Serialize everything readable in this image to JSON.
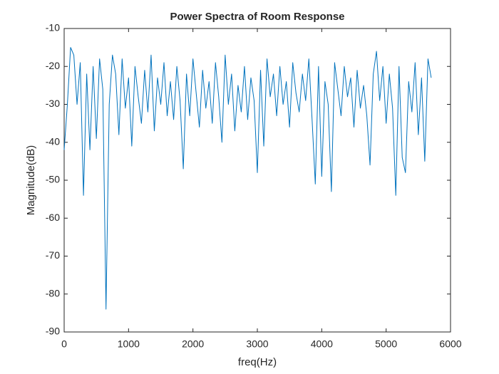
{
  "chart_data": {
    "type": "line",
    "title": "Power Spectra of Room Response",
    "xlabel": "freq(Hz)",
    "ylabel": "Magnitude(dB)",
    "x": [
      0,
      50,
      100,
      150,
      200,
      250,
      300,
      350,
      400,
      450,
      500,
      550,
      600,
      650,
      700,
      750,
      800,
      850,
      900,
      950,
      1000,
      1050,
      1100,
      1150,
      1200,
      1250,
      1300,
      1350,
      1400,
      1450,
      1500,
      1550,
      1600,
      1650,
      1700,
      1750,
      1800,
      1850,
      1900,
      1950,
      2000,
      2050,
      2100,
      2150,
      2200,
      2250,
      2300,
      2350,
      2400,
      2450,
      2500,
      2550,
      2600,
      2650,
      2700,
      2750,
      2800,
      2850,
      2900,
      2950,
      3000,
      3050,
      3100,
      3150,
      3200,
      3250,
      3300,
      3350,
      3400,
      3450,
      3500,
      3550,
      3600,
      3650,
      3700,
      3750,
      3800,
      3850,
      3900,
      3950,
      4000,
      4050,
      4100,
      4150,
      4200,
      4250,
      4300,
      4350,
      4400,
      4450,
      4500,
      4550,
      4600,
      4650,
      4700,
      4750,
      4800,
      4850,
      4900,
      4950,
      5000,
      5050,
      5100,
      5150,
      5200,
      5250,
      5300,
      5350,
      5400,
      5450,
      5500,
      5550,
      5600,
      5650,
      5700
    ],
    "series": [
      {
        "color": "#0072bd",
        "values": [
          -42,
          -30,
          -15,
          -17,
          -30,
          -19,
          -54,
          -22,
          -42,
          -20,
          -39,
          -18,
          -26,
          -84,
          -30,
          -17,
          -22,
          -38,
          -18,
          -31,
          -23,
          -41,
          -20,
          -28,
          -35,
          -21,
          -32,
          -17,
          -37,
          -23,
          -30,
          -19,
          -33,
          -24,
          -34,
          -20,
          -29,
          -47,
          -22,
          -33,
          -18,
          -27,
          -36,
          -21,
          -31,
          -24,
          -35,
          -19,
          -28,
          -40,
          -17,
          -30,
          -22,
          -37,
          -25,
          -32,
          -20,
          -34,
          -23,
          -29,
          -48,
          -21,
          -41,
          -18,
          -28,
          -22,
          -33,
          -20,
          -30,
          -24,
          -36,
          -19,
          -27,
          -32,
          -22,
          -29,
          -18,
          -34,
          -51,
          -20,
          -49,
          -24,
          -30,
          -53,
          -19,
          -26,
          -33,
          -20,
          -28,
          -23,
          -36,
          -21,
          -31,
          -25,
          -33,
          -46,
          -22,
          -16,
          -29,
          -20,
          -35,
          -22,
          -31,
          -54,
          -20,
          -44,
          -48,
          -24,
          -32,
          -19,
          -38,
          -23,
          -45,
          -18,
          -23
        ]
      }
    ],
    "xlim": [
      0,
      6000
    ],
    "xticks": [
      0,
      1000,
      2000,
      3000,
      4000,
      5000,
      6000
    ],
    "ylim": [
      -90,
      -10
    ],
    "yticks": [
      -90,
      -80,
      -70,
      -60,
      -50,
      -40,
      -30,
      -20,
      -10
    ]
  }
}
